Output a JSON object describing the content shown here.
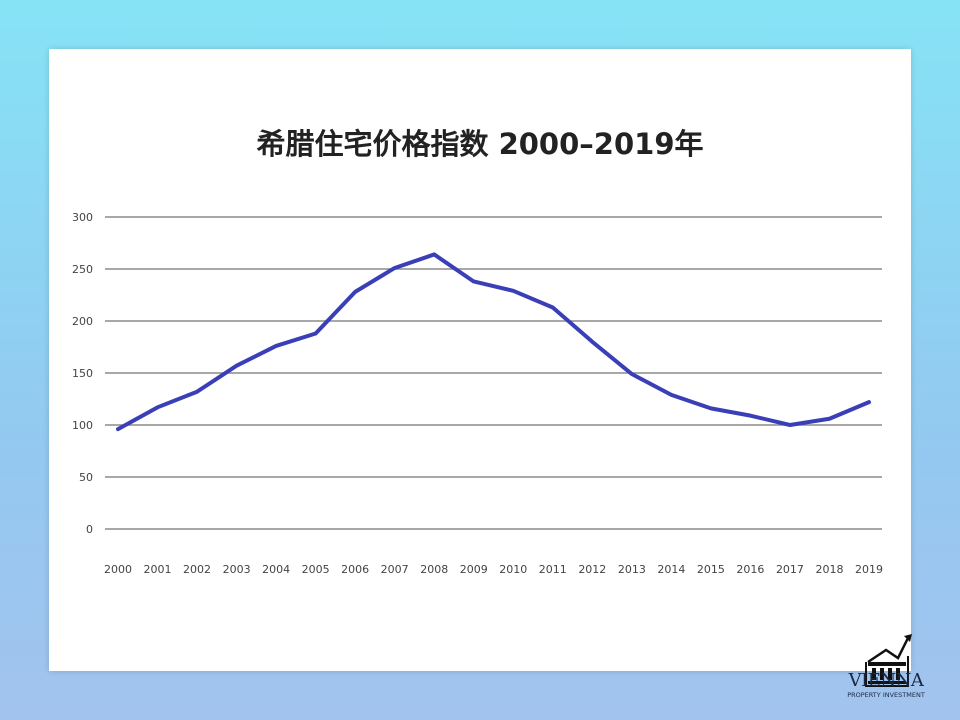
{
  "chart_data": {
    "type": "line",
    "title": "希腊住宅价格指数 2000–2019年",
    "xlabel": "",
    "ylabel": "",
    "categories": [
      "2000",
      "2001",
      "2002",
      "2003",
      "2004",
      "2005",
      "2006",
      "2007",
      "2008",
      "2009",
      "2010",
      "2011",
      "2012",
      "2013",
      "2014",
      "2015",
      "2016",
      "2017",
      "2018",
      "2019"
    ],
    "values": [
      96,
      117,
      132,
      157,
      176,
      188,
      228,
      251,
      264,
      238,
      229,
      213,
      180,
      149,
      129,
      116,
      109,
      100,
      106,
      122
    ],
    "ylim": [
      0,
      300
    ],
    "yticks": [
      0,
      50,
      100,
      150,
      200,
      250,
      300
    ],
    "grid": true,
    "line_color": "#3a3fb8"
  },
  "logo": {
    "name": "VIENNA",
    "subtitle": "PROPERTY INVESTMENT"
  }
}
